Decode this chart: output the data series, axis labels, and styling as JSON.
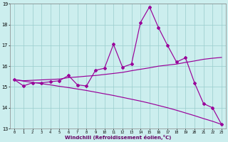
{
  "xlabel": "Windchill (Refroidissement éolien,°C)",
  "x": [
    0,
    1,
    2,
    3,
    4,
    5,
    6,
    7,
    8,
    9,
    10,
    11,
    12,
    13,
    14,
    15,
    16,
    17,
    18,
    19,
    20,
    21,
    22,
    23
  ],
  "windchill": [
    15.35,
    15.05,
    15.2,
    15.2,
    15.25,
    15.3,
    15.55,
    15.1,
    15.05,
    15.8,
    15.9,
    17.05,
    15.95,
    16.1,
    18.1,
    18.85,
    17.85,
    17.0,
    16.2,
    16.4,
    15.2,
    14.2,
    14.0,
    13.2
  ],
  "trend_up": [
    15.35,
    15.3,
    15.32,
    15.34,
    15.36,
    15.38,
    15.45,
    15.48,
    15.52,
    15.55,
    15.6,
    15.65,
    15.7,
    15.78,
    15.85,
    15.92,
    16.0,
    16.05,
    16.1,
    16.18,
    16.25,
    16.33,
    16.38,
    16.42
  ],
  "trend_down": [
    15.35,
    15.28,
    15.22,
    15.16,
    15.1,
    15.03,
    14.97,
    14.9,
    14.83,
    14.75,
    14.67,
    14.59,
    14.5,
    14.41,
    14.32,
    14.22,
    14.11,
    14.0,
    13.88,
    13.75,
    13.62,
    13.48,
    13.35,
    13.2
  ],
  "line_color": "#990099",
  "bg_color": "#cceeee",
  "grid_color": "#99cccc",
  "ylim": [
    13,
    19
  ],
  "yticks": [
    13,
    14,
    15,
    16,
    17,
    18,
    19
  ],
  "xlim": [
    -0.5,
    23.5
  ]
}
